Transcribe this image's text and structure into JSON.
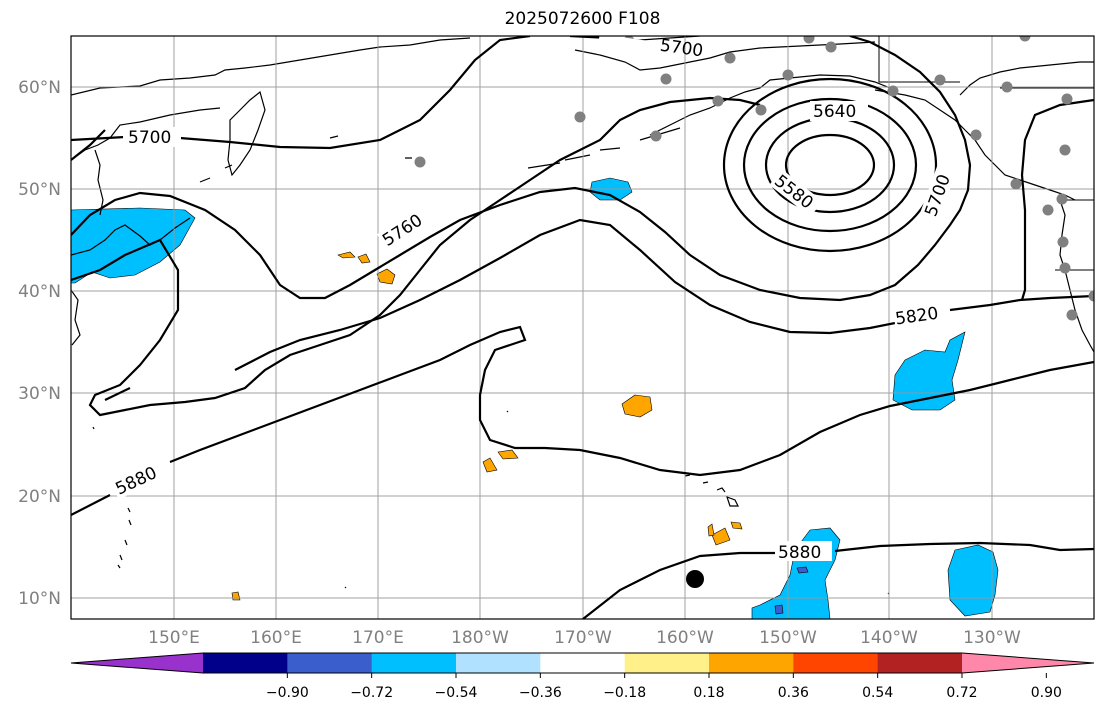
{
  "map": {
    "title": "2025072600 F108",
    "lat_labels": [
      "60°N",
      "50°N",
      "40°N",
      "30°N",
      "20°N",
      "10°N"
    ],
    "lon_labels": [
      "150°E",
      "160°E",
      "170°E",
      "180°W",
      "170°W",
      "160°W",
      "150°W",
      "140°W",
      "130°W"
    ],
    "contour_labels": [
      "5700",
      "5700",
      "5640",
      "5580",
      "5700",
      "5760",
      "5820",
      "5880",
      "5880"
    ],
    "colorbar": {
      "colors": [
        "#9932cc",
        "#00008b",
        "#3a5fcd",
        "#00bfff",
        "#b0e2ff",
        "#ffffff",
        "#fff08a",
        "#ffa500",
        "#ff4500",
        "#b22222",
        "#ff88aa"
      ],
      "labels": [
        "−0.90",
        "−0.72",
        "−0.54",
        "−0.36",
        "−0.18",
        "0.18",
        "0.36",
        "0.54",
        "0.72",
        "0.90"
      ]
    },
    "colors": {
      "contour": "#000000",
      "coast": "#000000",
      "grid": "#999999",
      "station": "#808080",
      "marker": "#000000"
    }
  }
}
